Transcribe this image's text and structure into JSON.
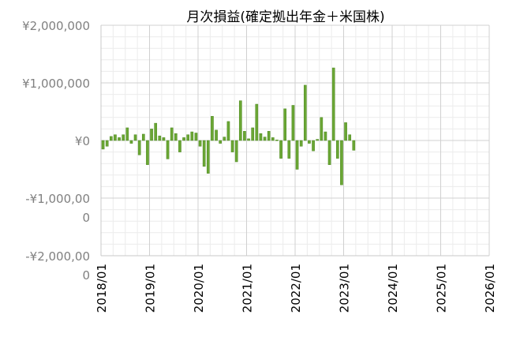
{
  "chart_data": {
    "type": "bar",
    "title": "月次損益(確定拠出年金＋米国株)",
    "xlabel": "",
    "ylabel": "",
    "bar_color": "#6aa634",
    "bar_outline_color": "#4f8a22",
    "grid": true,
    "ylim": [
      -2000000,
      2000000
    ],
    "xlim": [
      "2018/01",
      "2026/01"
    ],
    "y_ticks": [
      {
        "value": 2000000,
        "label": "¥2,000,000"
      },
      {
        "value": 1000000,
        "label": "¥1,000,000"
      },
      {
        "value": 0,
        "label": "¥0"
      },
      {
        "value": -1000000,
        "label": "-¥1,000,000"
      },
      {
        "value": -2000000,
        "label": "-¥2,000,000"
      }
    ],
    "x_ticks": [
      "2018/01",
      "2019/01",
      "2020/01",
      "2021/01",
      "2022/01",
      "2023/01",
      "2024/01",
      "2025/01",
      "2026/01"
    ],
    "categories": [
      "2018/01",
      "2018/02",
      "2018/03",
      "2018/04",
      "2018/05",
      "2018/06",
      "2018/07",
      "2018/08",
      "2018/09",
      "2018/10",
      "2018/11",
      "2018/12",
      "2019/01",
      "2019/02",
      "2019/03",
      "2019/04",
      "2019/05",
      "2019/06",
      "2019/07",
      "2019/08",
      "2019/09",
      "2019/10",
      "2019/11",
      "2019/12",
      "2020/01",
      "2020/02",
      "2020/03",
      "2020/04",
      "2020/05",
      "2020/06",
      "2020/07",
      "2020/08",
      "2020/09",
      "2020/10",
      "2020/11",
      "2020/12",
      "2021/01",
      "2021/02",
      "2021/03",
      "2021/04",
      "2021/05",
      "2021/06",
      "2021/07",
      "2021/08",
      "2021/09",
      "2021/10",
      "2021/11",
      "2021/12",
      "2022/01",
      "2022/02",
      "2022/03",
      "2022/04",
      "2022/05",
      "2022/06",
      "2022/07",
      "2022/08",
      "2022/09",
      "2022/10",
      "2022/11",
      "2022/12",
      "2023/01",
      "2023/02",
      "2023/03"
    ],
    "values": [
      -150000,
      -100000,
      70000,
      100000,
      50000,
      100000,
      220000,
      -50000,
      100000,
      -250000,
      110000,
      -420000,
      200000,
      300000,
      80000,
      50000,
      -320000,
      220000,
      120000,
      -200000,
      50000,
      100000,
      150000,
      130000,
      -100000,
      -450000,
      -570000,
      420000,
      180000,
      -50000,
      60000,
      330000,
      -200000,
      -370000,
      690000,
      160000,
      30000,
      220000,
      630000,
      120000,
      60000,
      160000,
      50000,
      10000,
      -310000,
      550000,
      -310000,
      610000,
      -500000,
      -100000,
      960000,
      -50000,
      -180000,
      20000,
      400000,
      150000,
      -420000,
      1260000,
      -310000,
      -770000,
      310000,
      100000,
      -170000
    ]
  }
}
